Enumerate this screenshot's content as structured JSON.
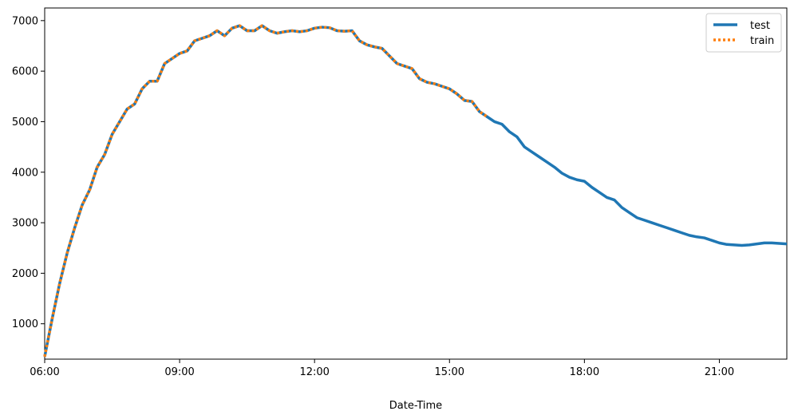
{
  "chart_data": {
    "type": "line",
    "xlabel": "Date-Time",
    "ylabel": "",
    "x_ticks": [
      "06:00",
      "09:00",
      "12:00",
      "15:00",
      "18:00",
      "21:00"
    ],
    "y_ticks": [
      1000,
      2000,
      3000,
      4000,
      5000,
      6000,
      7000
    ],
    "xlim": [
      "06:00",
      "22:30"
    ],
    "ylim": [
      300,
      7250
    ],
    "grid": false,
    "legend_position": "top-right",
    "series": [
      {
        "name": "test",
        "color": "#1f77b4",
        "style": "solid",
        "x": [
          "06:00",
          "06:10",
          "06:20",
          "06:30",
          "06:40",
          "06:50",
          "07:00",
          "07:10",
          "07:20",
          "07:30",
          "07:40",
          "07:50",
          "08:00",
          "08:10",
          "08:20",
          "08:30",
          "08:40",
          "08:50",
          "09:00",
          "09:10",
          "09:20",
          "09:30",
          "09:40",
          "09:50",
          "10:00",
          "10:10",
          "10:20",
          "10:30",
          "10:40",
          "10:50",
          "11:00",
          "11:10",
          "11:20",
          "11:30",
          "11:40",
          "11:50",
          "12:00",
          "12:10",
          "12:20",
          "12:30",
          "12:40",
          "12:50",
          "13:00",
          "13:10",
          "13:20",
          "13:30",
          "13:40",
          "13:50",
          "14:00",
          "14:10",
          "14:20",
          "14:30",
          "14:40",
          "14:50",
          "15:00",
          "15:10",
          "15:20",
          "15:30",
          "15:40",
          "15:50",
          "16:00",
          "16:10",
          "16:20",
          "16:30",
          "16:40",
          "16:50",
          "17:00",
          "17:10",
          "17:20",
          "17:30",
          "17:40",
          "17:50",
          "18:00",
          "18:10",
          "18:20",
          "18:30",
          "18:40",
          "18:50",
          "19:00",
          "19:10",
          "19:20",
          "19:30",
          "19:40",
          "19:50",
          "20:00",
          "20:10",
          "20:20",
          "20:30",
          "20:40",
          "20:50",
          "21:00",
          "21:10",
          "21:20",
          "21:30",
          "21:40",
          "21:50",
          "22:00",
          "22:10",
          "22:20",
          "22:30"
        ],
        "values": [
          350,
          1100,
          1800,
          2400,
          2900,
          3350,
          3650,
          4100,
          4350,
          4750,
          5000,
          5250,
          5350,
          5650,
          5800,
          5800,
          6150,
          6250,
          6350,
          6400,
          6600,
          6650,
          6700,
          6800,
          6700,
          6850,
          6900,
          6800,
          6800,
          6900,
          6800,
          6750,
          6780,
          6800,
          6780,
          6800,
          6850,
          6870,
          6860,
          6800,
          6790,
          6800,
          6600,
          6520,
          6480,
          6450,
          6300,
          6150,
          6100,
          6050,
          5850,
          5780,
          5750,
          5700,
          5650,
          5550,
          5420,
          5400,
          5200,
          5100,
          5000,
          4950,
          4800,
          4700,
          4500,
          4400,
          4300,
          4200,
          4100,
          3980,
          3900,
          3850,
          3820,
          3700,
          3600,
          3500,
          3450,
          3300,
          3200,
          3100,
          3050,
          3000,
          2950,
          2900,
          2850,
          2800,
          2750,
          2720,
          2700,
          2650,
          2600,
          2570,
          2560,
          2550,
          2560,
          2580,
          2600,
          2600,
          2590,
          2580
        ]
      },
      {
        "name": "train",
        "color": "#ff7f0e",
        "style": "dotted",
        "x": [
          "06:00",
          "06:10",
          "06:20",
          "06:30",
          "06:40",
          "06:50",
          "07:00",
          "07:10",
          "07:20",
          "07:30",
          "07:40",
          "07:50",
          "08:00",
          "08:10",
          "08:20",
          "08:30",
          "08:40",
          "08:50",
          "09:00",
          "09:10",
          "09:20",
          "09:30",
          "09:40",
          "09:50",
          "10:00",
          "10:10",
          "10:20",
          "10:30",
          "10:40",
          "10:50",
          "11:00",
          "11:10",
          "11:20",
          "11:30",
          "11:40",
          "11:50",
          "12:00",
          "12:10",
          "12:20",
          "12:30",
          "12:40",
          "12:50",
          "13:00",
          "13:10",
          "13:20",
          "13:30",
          "13:40",
          "13:50",
          "14:00",
          "14:10",
          "14:20",
          "14:30",
          "14:40",
          "14:50",
          "15:00",
          "15:10",
          "15:20",
          "15:30",
          "15:40",
          "15:50"
        ],
        "values": [
          350,
          1100,
          1800,
          2400,
          2900,
          3350,
          3650,
          4100,
          4350,
          4750,
          5000,
          5250,
          5350,
          5650,
          5800,
          5800,
          6150,
          6250,
          6350,
          6400,
          6600,
          6650,
          6700,
          6800,
          6700,
          6850,
          6900,
          6800,
          6800,
          6900,
          6800,
          6750,
          6780,
          6800,
          6780,
          6800,
          6850,
          6870,
          6860,
          6800,
          6790,
          6800,
          6600,
          6520,
          6480,
          6450,
          6300,
          6150,
          6100,
          6050,
          5850,
          5780,
          5750,
          5700,
          5650,
          5550,
          5420,
          5400,
          5200,
          5100
        ]
      }
    ]
  }
}
